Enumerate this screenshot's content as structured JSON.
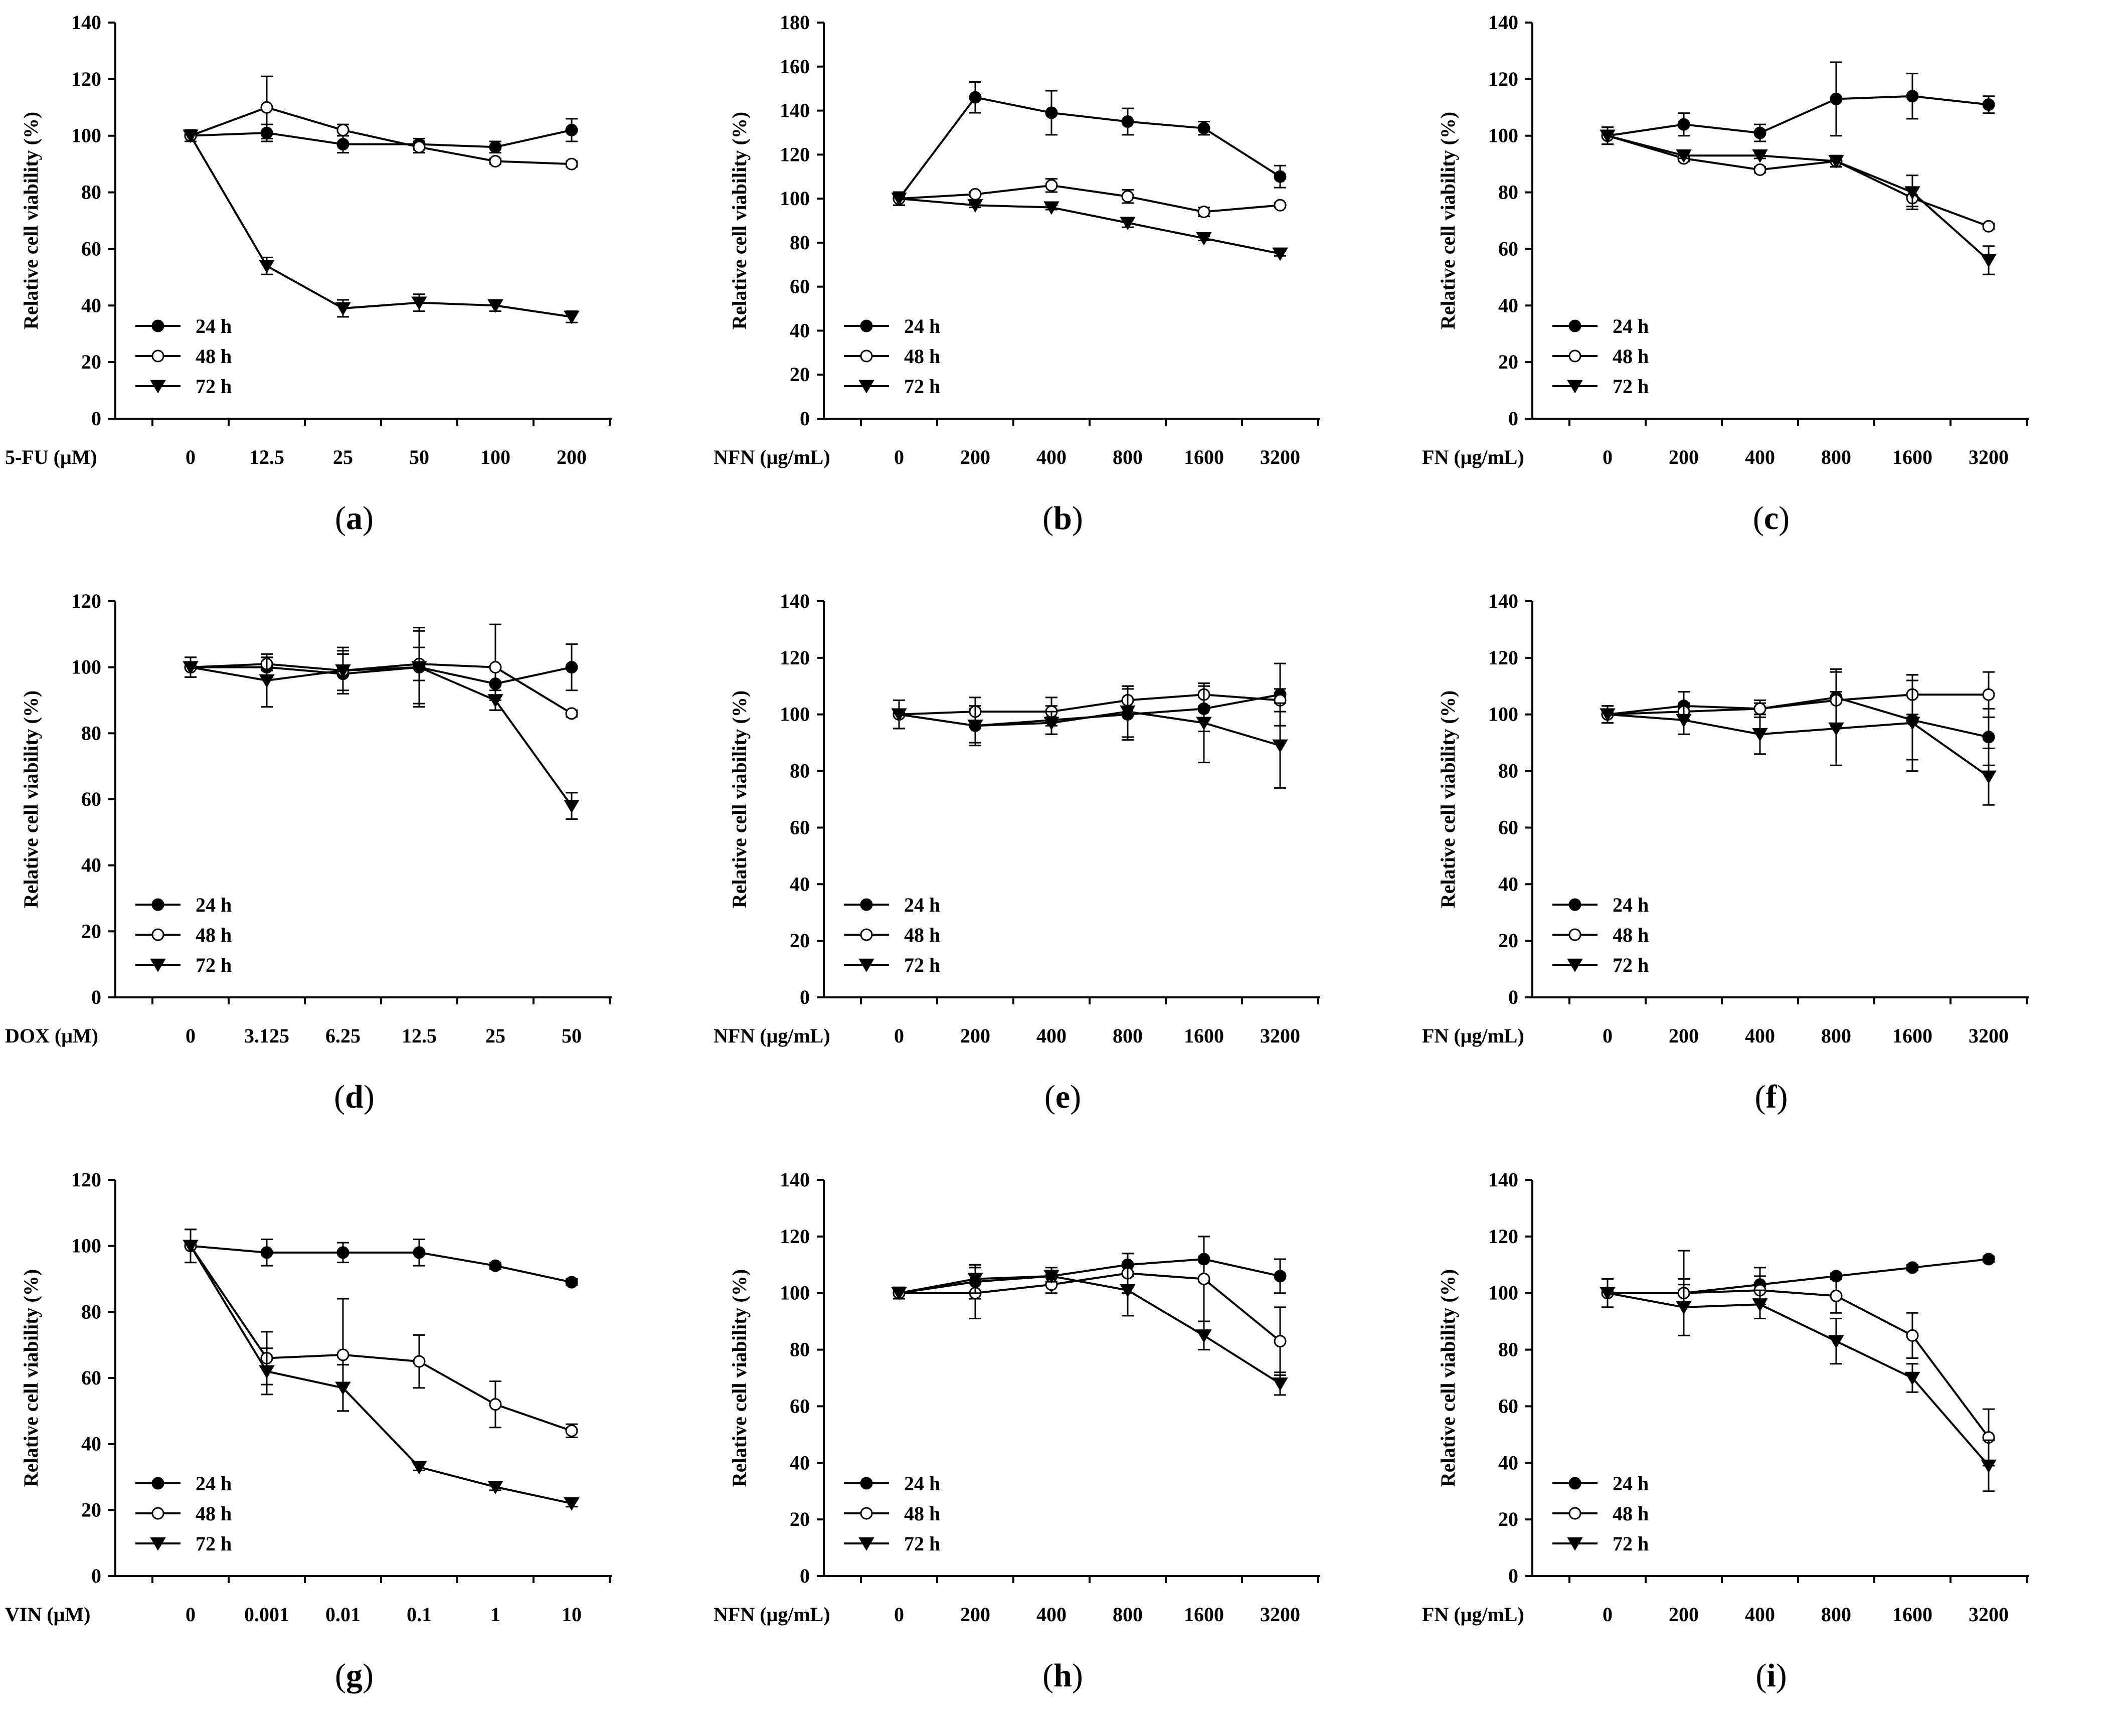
{
  "figure": {
    "series_legend": [
      "24 h",
      "48 h",
      "72 h"
    ],
    "markers": {
      "24 h": "filled-circle",
      "48 h": "open-circle",
      "72 h": "filled-triangle-down"
    },
    "ylabel": "Relative cell viability (%)"
  },
  "chart_data": [
    {
      "id": "a",
      "type": "line",
      "panel_label": "a",
      "xlabel": "5-FU (μM)",
      "ylabel": "Relative cell viability (%)",
      "categories": [
        "0",
        "12.5",
        "25",
        "50",
        "100",
        "200"
      ],
      "ylim": [
        0,
        140
      ],
      "yticks": [
        0,
        20,
        40,
        60,
        80,
        100,
        120,
        140
      ],
      "legend": "lower-left",
      "series": [
        {
          "name": "24 h",
          "values": [
            100,
            101,
            97,
            97,
            96,
            102
          ],
          "errors": [
            2,
            3,
            3,
            2,
            2,
            4
          ]
        },
        {
          "name": "48 h",
          "values": [
            100,
            110,
            102,
            96,
            91,
            90
          ],
          "errors": [
            2,
            11,
            2,
            2,
            1,
            1
          ]
        },
        {
          "name": "72 h",
          "values": [
            100,
            54,
            39,
            41,
            40,
            36
          ],
          "errors": [
            2,
            3,
            3,
            3,
            2,
            2
          ]
        }
      ]
    },
    {
      "id": "b",
      "type": "line",
      "panel_label": "b",
      "xlabel": "NFN (μg/mL)",
      "ylabel": "Relative cell viability (%)",
      "categories": [
        "0",
        "200",
        "400",
        "800",
        "1600",
        "3200"
      ],
      "ylim": [
        0,
        180
      ],
      "yticks": [
        0,
        20,
        40,
        60,
        80,
        100,
        120,
        140,
        160,
        180
      ],
      "legend": "lower-left",
      "series": [
        {
          "name": "24 h",
          "values": [
            100,
            146,
            139,
            135,
            132,
            110
          ],
          "errors": [
            3,
            7,
            10,
            6,
            3,
            5
          ]
        },
        {
          "name": "48 h",
          "values": [
            100,
            102,
            106,
            101,
            94,
            97
          ],
          "errors": [
            3,
            1,
            3,
            3,
            2,
            1
          ]
        },
        {
          "name": "72 h",
          "values": [
            100,
            97,
            96,
            89,
            82,
            75
          ],
          "errors": [
            3,
            1,
            1,
            2,
            1,
            1
          ]
        }
      ]
    },
    {
      "id": "c",
      "type": "line",
      "panel_label": "c",
      "xlabel": "FN (μg/mL)",
      "ylabel": "Relative cell viability (%)",
      "categories": [
        "0",
        "200",
        "400",
        "800",
        "1600",
        "3200"
      ],
      "ylim": [
        0,
        140
      ],
      "yticks": [
        0,
        20,
        40,
        60,
        80,
        100,
        120,
        140
      ],
      "legend": "lower-left",
      "series": [
        {
          "name": "24 h",
          "values": [
            100,
            104,
            101,
            113,
            114,
            111
          ],
          "errors": [
            3,
            4,
            3,
            13,
            8,
            3
          ]
        },
        {
          "name": "48 h",
          "values": [
            100,
            92,
            88,
            91,
            78,
            68
          ],
          "errors": [
            3,
            1,
            1,
            2,
            3,
            1
          ]
        },
        {
          "name": "72 h",
          "values": [
            100,
            93,
            93,
            91,
            80,
            56
          ],
          "errors": [
            3,
            1,
            1,
            2,
            6,
            5
          ]
        }
      ]
    },
    {
      "id": "d",
      "type": "line",
      "panel_label": "d",
      "xlabel": "DOX (μM)",
      "ylabel": "Relative cell viability (%)",
      "categories": [
        "0",
        "3.125",
        "6.25",
        "12.5",
        "25",
        "50"
      ],
      "ylim": [
        0,
        120
      ],
      "yticks": [
        0,
        20,
        40,
        60,
        80,
        100,
        120
      ],
      "legend": "lower-left",
      "series": [
        {
          "name": "24 h",
          "values": [
            100,
            100,
            98,
            100,
            95,
            100
          ],
          "errors": [
            3,
            3,
            6,
            12,
            5,
            7
          ]
        },
        {
          "name": "48 h",
          "values": [
            100,
            101,
            99,
            101,
            100,
            86
          ],
          "errors": [
            3,
            2,
            7,
            5,
            13,
            1
          ]
        },
        {
          "name": "72 h",
          "values": [
            100,
            96,
            99,
            100,
            90,
            58
          ],
          "errors": [
            3,
            8,
            6,
            11,
            3,
            4
          ]
        }
      ]
    },
    {
      "id": "e",
      "type": "line",
      "panel_label": "e",
      "xlabel": "NFN (μg/mL)",
      "ylabel": "Relative cell viability (%)",
      "categories": [
        "0",
        "200",
        "400",
        "800",
        "1600",
        "3200"
      ],
      "ylim": [
        0,
        140
      ],
      "yticks": [
        0,
        20,
        40,
        60,
        80,
        100,
        120,
        140
      ],
      "legend": "lower-left",
      "series": [
        {
          "name": "24 h",
          "values": [
            100,
            96,
            98,
            100,
            102,
            107
          ],
          "errors": [
            5,
            6,
            5,
            9,
            8,
            11
          ]
        },
        {
          "name": "48 h",
          "values": [
            100,
            101,
            101,
            105,
            107,
            105
          ],
          "errors": [
            5,
            5,
            5,
            5,
            4,
            4
          ]
        },
        {
          "name": "72 h",
          "values": [
            100,
            96,
            97,
            101,
            97,
            89
          ],
          "errors": [
            5,
            7,
            4,
            9,
            14,
            15
          ]
        }
      ]
    },
    {
      "id": "f",
      "type": "line",
      "panel_label": "f",
      "xlabel": "FN (μg/mL)",
      "ylabel": "Relative cell viability (%)",
      "categories": [
        "0",
        "200",
        "400",
        "800",
        "1600",
        "3200"
      ],
      "ylim": [
        0,
        140
      ],
      "yticks": [
        0,
        20,
        40,
        60,
        80,
        100,
        120,
        140
      ],
      "legend": "lower-left",
      "series": [
        {
          "name": "24 h",
          "values": [
            100,
            103,
            102,
            106,
            98,
            92
          ],
          "errors": [
            3,
            5,
            3,
            10,
            14,
            10
          ]
        },
        {
          "name": "48 h",
          "values": [
            100,
            101,
            102,
            105,
            107,
            107
          ],
          "errors": [
            3,
            3,
            2,
            10,
            7,
            8
          ]
        },
        {
          "name": "72 h",
          "values": [
            100,
            98,
            93,
            95,
            97,
            78
          ],
          "errors": [
            3,
            5,
            7,
            13,
            17,
            10
          ]
        }
      ]
    },
    {
      "id": "g",
      "type": "line",
      "panel_label": "g",
      "xlabel": "VIN (μM)",
      "ylabel": "Relative cell viability (%)",
      "categories": [
        "0",
        "0.001",
        "0.01",
        "0.1",
        "1",
        "10"
      ],
      "ylim": [
        0,
        120
      ],
      "yticks": [
        0,
        20,
        40,
        60,
        80,
        100,
        120
      ],
      "legend": "lower-left",
      "series": [
        {
          "name": "24 h",
          "values": [
            100,
            98,
            98,
            98,
            94,
            89
          ],
          "errors": [
            5,
            4,
            3,
            4,
            1,
            1
          ]
        },
        {
          "name": "48 h",
          "values": [
            100,
            66,
            67,
            65,
            52,
            44
          ],
          "errors": [
            5,
            8,
            17,
            8,
            7,
            2
          ]
        },
        {
          "name": "72 h",
          "values": [
            100,
            62,
            57,
            33,
            27,
            22
          ],
          "errors": [
            5,
            7,
            7,
            1,
            1,
            1
          ]
        }
      ]
    },
    {
      "id": "h",
      "type": "line",
      "panel_label": "h",
      "xlabel": "NFN (μg/mL)",
      "ylabel": "Relative cell viability (%)",
      "categories": [
        "0",
        "200",
        "400",
        "800",
        "1600",
        "3200"
      ],
      "ylim": [
        0,
        140
      ],
      "yticks": [
        0,
        20,
        40,
        60,
        80,
        100,
        120,
        140
      ],
      "legend": "lower-left",
      "series": [
        {
          "name": "24 h",
          "values": [
            100,
            104,
            106,
            110,
            112,
            106
          ],
          "errors": [
            2,
            6,
            3,
            4,
            8,
            6
          ]
        },
        {
          "name": "48 h",
          "values": [
            100,
            100,
            103,
            107,
            105,
            83
          ],
          "errors": [
            2,
            9,
            3,
            7,
            15,
            12
          ]
        },
        {
          "name": "72 h",
          "values": [
            100,
            105,
            106,
            101,
            85,
            68
          ],
          "errors": [
            2,
            5,
            2,
            9,
            5,
            4
          ]
        }
      ]
    },
    {
      "id": "i",
      "type": "line",
      "panel_label": "i",
      "xlabel": "FN (μg/mL)",
      "ylabel": "Relative cell viability (%)",
      "categories": [
        "0",
        "200",
        "400",
        "800",
        "1600",
        "3200"
      ],
      "ylim": [
        0,
        140
      ],
      "yticks": [
        0,
        20,
        40,
        60,
        80,
        100,
        120,
        140
      ],
      "legend": "lower-left",
      "series": [
        {
          "name": "24 h",
          "values": [
            100,
            100,
            103,
            106,
            109,
            112
          ],
          "errors": [
            5,
            3,
            6,
            1,
            1,
            1
          ]
        },
        {
          "name": "48 h",
          "values": [
            100,
            100,
            101,
            99,
            85,
            49
          ],
          "errors": [
            5,
            15,
            5,
            6,
            8,
            10
          ]
        },
        {
          "name": "72 h",
          "values": [
            100,
            95,
            96,
            83,
            70,
            39
          ],
          "errors": [
            5,
            10,
            5,
            8,
            5,
            9
          ]
        }
      ]
    }
  ]
}
